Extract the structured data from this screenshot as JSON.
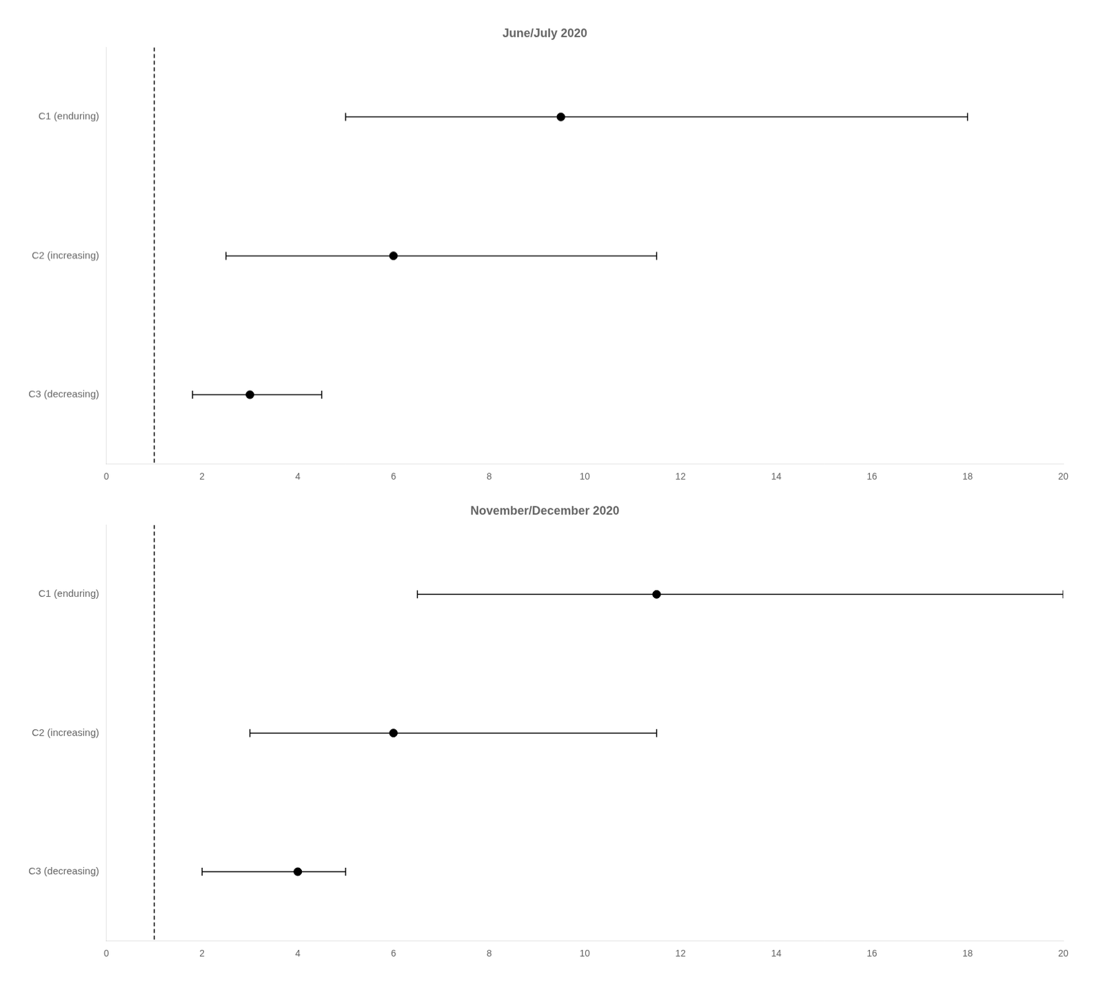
{
  "chart_data": [
    {
      "type": "errorbar",
      "title": "June/July 2020",
      "categories": [
        "C1 (enduring)",
        "C2 (increasing)",
        "C3 (decreasing)"
      ],
      "values": [
        9.5,
        6.0,
        3.0
      ],
      "ci_low": [
        5.0,
        2.5,
        1.8
      ],
      "ci_high": [
        18.0,
        11.5,
        4.5
      ],
      "color": "#000000",
      "vline": 1.0,
      "xlim": [
        0,
        20
      ],
      "xticks": [
        0,
        2,
        4,
        6,
        8,
        10,
        12,
        14,
        16,
        18,
        20
      ],
      "grid": false
    },
    {
      "type": "errorbar",
      "title": "November/December 2020",
      "categories": [
        "C1 (enduring)",
        "C2 (increasing)",
        "C3 (decreasing)"
      ],
      "values": [
        11.5,
        6.0,
        4.0
      ],
      "ci_low": [
        6.5,
        3.0,
        2.0
      ],
      "ci_high": [
        20.0,
        11.5,
        5.0
      ],
      "color": "#000000",
      "vline": 1.0,
      "xlim": [
        0,
        20
      ],
      "xticks": [
        0,
        2,
        4,
        6,
        8,
        10,
        12,
        14,
        16,
        18,
        20
      ],
      "grid": false
    }
  ]
}
